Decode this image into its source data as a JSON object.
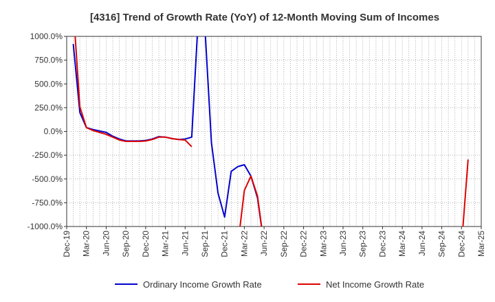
{
  "chart_data": {
    "type": "line",
    "title": "[4316]  Trend of Growth Rate (YoY) of 12-Month Moving Sum of Incomes",
    "xlabel": "",
    "ylabel": "",
    "ylim": [
      -1000,
      1000
    ],
    "y_ticks": [
      1000,
      750,
      500,
      250,
      0,
      -250,
      -500,
      -750,
      -1000
    ],
    "y_tick_labels": [
      "1000.0%",
      "750.0%",
      "500.0%",
      "250.0%",
      "0.0%",
      "-250.0%",
      "-500.0%",
      "-750.0%",
      "-1000.0%"
    ],
    "x_tick_labels": [
      "Dec-19",
      "Mar-20",
      "Jun-20",
      "Sep-20",
      "Dec-20",
      "Mar-21",
      "Jun-21",
      "Sep-21",
      "Dec-21",
      "Mar-22",
      "Jun-22",
      "Sep-22",
      "Dec-22",
      "Mar-23",
      "Jun-23",
      "Sep-23",
      "Dec-23",
      "Mar-24",
      "Jun-24",
      "Sep-24",
      "Dec-24",
      "Mar-25"
    ],
    "x_months": [
      "2019-12",
      "2020-01",
      "2020-02",
      "2020-03",
      "2020-04",
      "2020-05",
      "2020-06",
      "2020-07",
      "2020-08",
      "2020-09",
      "2020-10",
      "2020-11",
      "2020-12",
      "2021-01",
      "2021-02",
      "2021-03",
      "2021-04",
      "2021-05",
      "2021-06",
      "2021-07",
      "2021-08",
      "2021-09",
      "2021-10",
      "2021-11",
      "2021-12",
      "2022-01",
      "2022-02",
      "2022-03",
      "2022-04",
      "2022-05",
      "2022-06",
      "2022-07",
      "2022-08",
      "2022-09",
      "2022-10",
      "2022-11",
      "2022-12",
      "2023-01",
      "2023-02",
      "2023-03",
      "2023-04",
      "2023-05",
      "2023-06",
      "2023-07",
      "2023-08",
      "2023-09",
      "2023-10",
      "2023-11",
      "2023-12",
      "2024-01",
      "2024-02",
      "2024-03",
      "2024-04",
      "2024-05",
      "2024-06",
      "2024-07",
      "2024-08",
      "2024-09",
      "2024-10",
      "2024-11",
      "2024-12",
      "2025-01",
      "2025-02",
      "2025-03"
    ],
    "grid": true,
    "legend_position": "bottom",
    "series": [
      {
        "name": "Ordinary Income Growth Rate",
        "color": "#0000cc",
        "values": [
          null,
          920,
          200,
          40,
          20,
          5,
          -10,
          -50,
          -80,
          -100,
          -100,
          -100,
          -95,
          -80,
          -55,
          -60,
          -75,
          -85,
          -80,
          -60,
          1200,
          1100,
          -120,
          -650,
          -900,
          -420,
          -370,
          -350,
          -470,
          -700,
          -1200,
          null,
          null,
          null,
          null,
          null,
          null,
          null,
          null,
          null,
          null,
          null,
          null,
          null,
          null,
          null,
          null,
          null,
          null,
          null,
          null,
          null,
          null,
          null,
          null,
          null,
          null,
          null,
          null,
          null,
          null,
          null,
          null,
          null
        ]
      },
      {
        "name": "Net Income Growth Rate",
        "color": "#dd0000",
        "values": [
          null,
          1300,
          260,
          40,
          10,
          -10,
          -30,
          -60,
          -90,
          -105,
          -105,
          -105,
          -100,
          -85,
          -60,
          -60,
          -75,
          -85,
          -90,
          -160,
          null,
          null,
          null,
          null,
          null,
          null,
          -1200,
          -620,
          -470,
          -680,
          -1200,
          null,
          null,
          null,
          null,
          null,
          null,
          null,
          null,
          null,
          null,
          null,
          null,
          null,
          null,
          null,
          null,
          null,
          null,
          null,
          null,
          null,
          null,
          null,
          null,
          null,
          null,
          null,
          null,
          null,
          -1200,
          -295,
          null,
          null
        ]
      }
    ]
  }
}
